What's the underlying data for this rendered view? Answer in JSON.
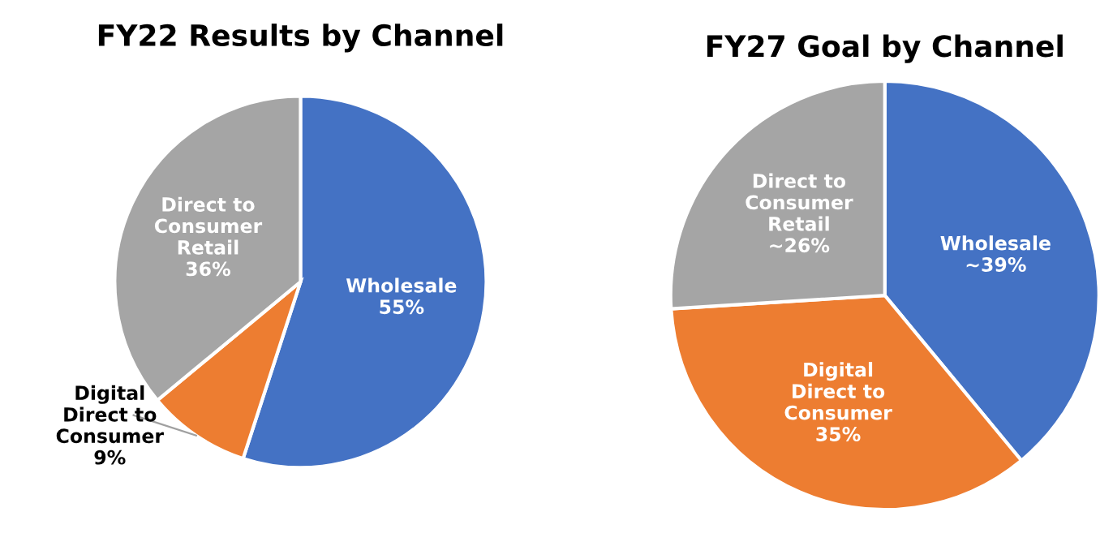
{
  "chart_data": [
    {
      "type": "pie",
      "title": "FY22 Results by Channel",
      "categories": [
        "Wholesale",
        "Digital\nDirect to\nConsumer",
        "Direct to\nConsumer\nRetail"
      ],
      "values": [
        55,
        9,
        36
      ],
      "value_labels": [
        "55%",
        "9%",
        "36%"
      ],
      "colors": [
        "#4472c4",
        "#ed7d31",
        "#a5a5a5"
      ]
    },
    {
      "type": "pie",
      "title": "FY27 Goal by Channel",
      "categories": [
        "Wholesale",
        "Digital\nDirect to\nConsumer",
        "Direct to\nConsumer\nRetail"
      ],
      "values": [
        39,
        35,
        26
      ],
      "value_labels": [
        "~39%",
        "35%",
        "~26%"
      ],
      "colors": [
        "#4472c4",
        "#ed7d31",
        "#a5a5a5"
      ]
    }
  ]
}
